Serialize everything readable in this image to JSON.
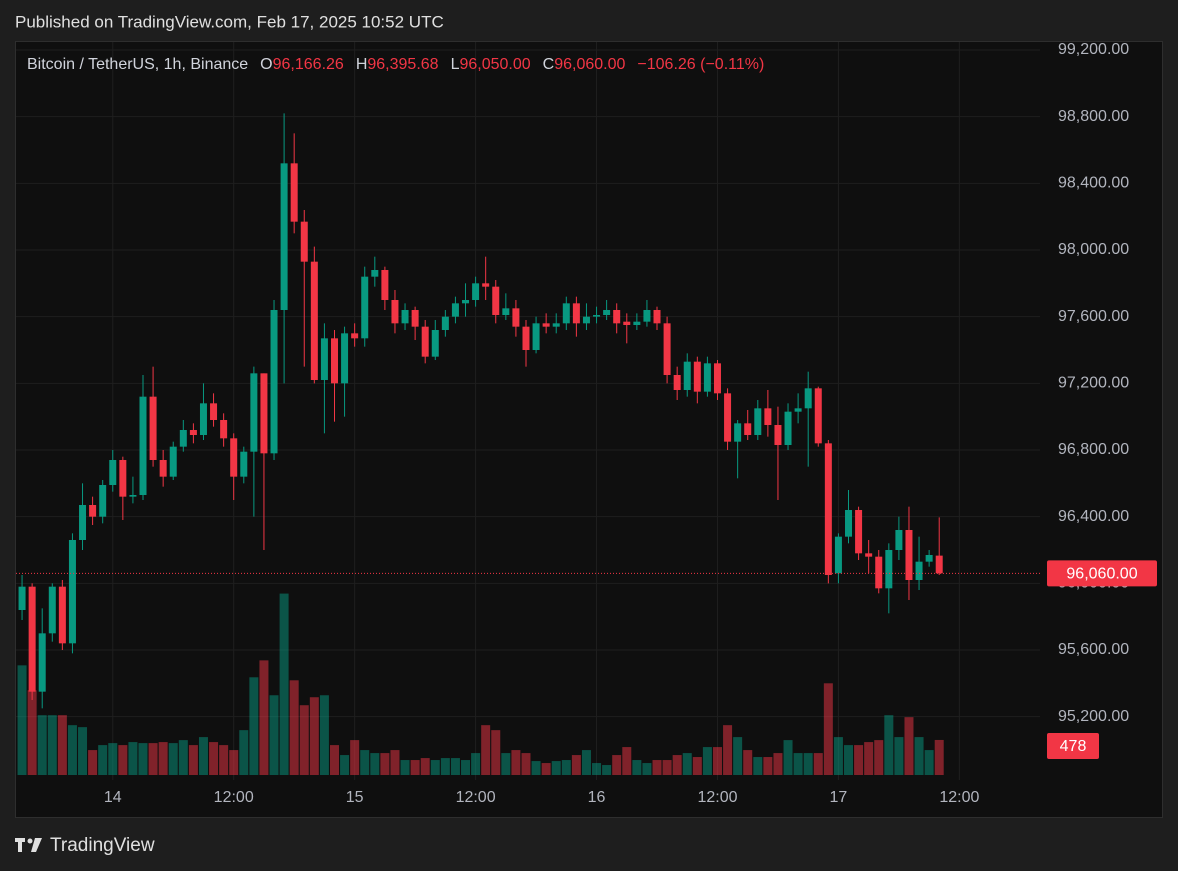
{
  "banner": "Published on TradingView.com, Feb 17, 2025 10:52 UTC",
  "footer": "TradingView",
  "chart_data": {
    "type": "candlestick",
    "symbol": "Bitcoin / TetherUS, 1h, Binance",
    "legend": [
      {
        "key": "O",
        "value": "96,166.26"
      },
      {
        "key": "H",
        "value": "96,395.68"
      },
      {
        "key": "L",
        "value": "96,050.00"
      },
      {
        "key": "C",
        "value": "96,060.00"
      }
    ],
    "change": "−106.26 (−0.11%)",
    "x": [
      -9,
      -8,
      -7,
      -6,
      -5,
      -4,
      -3,
      -2,
      -1,
      0,
      1,
      2,
      3,
      4,
      5,
      6,
      7,
      8,
      9,
      10,
      11,
      12,
      13,
      14,
      15,
      16,
      17,
      18,
      19,
      20,
      21,
      22,
      23,
      24,
      25,
      26,
      27,
      28,
      29,
      30,
      31,
      32,
      33,
      34,
      35,
      36,
      37,
      38,
      39,
      40,
      41,
      42,
      43,
      44,
      45,
      46,
      47,
      48,
      49,
      50,
      51,
      52,
      53,
      54,
      55,
      56,
      57,
      58,
      59,
      60,
      61,
      62,
      63,
      64,
      65,
      66,
      67,
      68,
      69,
      70,
      71,
      72,
      73,
      74,
      75,
      76,
      77,
      78,
      79,
      80,
      81,
      82
    ],
    "open": [
      95840,
      95980,
      95350,
      95700,
      95980,
      95640,
      96260,
      96470,
      96400,
      96590,
      96740,
      96520,
      96530,
      97120,
      96740,
      96640,
      96820,
      96920,
      96890,
      97080,
      96980,
      96870,
      96640,
      96790,
      97260,
      96780,
      97640,
      98520,
      98170,
      97930,
      97220,
      97470,
      97200,
      97500,
      97470,
      97840,
      97880,
      97700,
      97560,
      97640,
      97540,
      97360,
      97520,
      97600,
      97680,
      97700,
      97800,
      97780,
      97610,
      97650,
      97540,
      97400,
      97560,
      97540,
      97560,
      97680,
      97560,
      97600,
      97610,
      97640,
      97570,
      97550,
      97570,
      97640,
      97560,
      97250,
      97160,
      97330,
      97150,
      97320,
      97140,
      96850,
      96960,
      96890,
      97050,
      96950,
      96830,
      97030,
      97050,
      97170,
      96840,
      96060,
      96280,
      96440,
      96180,
      96160,
      95970,
      96200,
      96320,
      96020,
      96130,
      96166.26
    ],
    "high": [
      96050,
      96000,
      95850,
      96000,
      96020,
      96300,
      96600,
      96520,
      96620,
      96800,
      96760,
      96640,
      97250,
      97300,
      96800,
      96850,
      96980,
      96960,
      97200,
      97140,
      97020,
      96900,
      96820,
      97300,
      97260,
      97700,
      98820,
      98700,
      98240,
      98020,
      97560,
      97520,
      97540,
      97560,
      97900,
      97960,
      97900,
      97760,
      97680,
      97660,
      97580,
      97580,
      97640,
      97720,
      97800,
      97840,
      97960,
      97820,
      97740,
      97700,
      97580,
      97600,
      97620,
      97620,
      97720,
      97720,
      97680,
      97660,
      97700,
      97680,
      97620,
      97620,
      97700,
      97660,
      97600,
      97300,
      97380,
      97360,
      97360,
      97340,
      97170,
      96980,
      97040,
      97100,
      97160,
      97060,
      97080,
      97140,
      97270,
      97180,
      96860,
      96300,
      96560,
      96460,
      96260,
      96200,
      96240,
      96400,
      96460,
      96280,
      96200,
      96395.68
    ],
    "low": [
      95780,
      95300,
      95250,
      95650,
      95600,
      95580,
      96200,
      96350,
      96360,
      96550,
      96380,
      96480,
      96500,
      96700,
      96580,
      96620,
      96790,
      96840,
      96860,
      96940,
      96820,
      96500,
      96600,
      96400,
      96200,
      96740,
      97200,
      98100,
      97300,
      97200,
      96900,
      96970,
      97000,
      97420,
      97420,
      97780,
      97640,
      97500,
      97520,
      97460,
      97320,
      97340,
      97480,
      97560,
      97600,
      97660,
      97700,
      97560,
      97580,
      97480,
      97300,
      97380,
      97500,
      97500,
      97520,
      97480,
      97520,
      97560,
      97580,
      97500,
      97440,
      97520,
      97540,
      97520,
      97200,
      97100,
      97120,
      97080,
      97120,
      97100,
      96800,
      96630,
      96860,
      96860,
      96880,
      96500,
      96800,
      96960,
      96700,
      96820,
      96000,
      96000,
      96240,
      96140,
      96060,
      95940,
      95820,
      96140,
      95900,
      95960,
      96100,
      96050
    ],
    "close": [
      95980,
      95350,
      95700,
      95980,
      95640,
      96260,
      96470,
      96400,
      96590,
      96740,
      96520,
      96530,
      97120,
      96740,
      96640,
      96820,
      96920,
      96890,
      97080,
      96980,
      96870,
      96640,
      96790,
      97260,
      96780,
      97640,
      98520,
      98170,
      97930,
      97220,
      97470,
      97200,
      97500,
      97470,
      97840,
      97880,
      97700,
      97560,
      97640,
      97540,
      97360,
      97520,
      97600,
      97680,
      97700,
      97800,
      97780,
      97610,
      97650,
      97540,
      97400,
      97560,
      97540,
      97560,
      97680,
      97560,
      97600,
      97610,
      97640,
      97560,
      97550,
      97570,
      97640,
      97560,
      97250,
      97160,
      97330,
      97150,
      97320,
      97140,
      96850,
      96960,
      96890,
      97050,
      96950,
      96830,
      97030,
      97050,
      97170,
      96840,
      96050,
      96280,
      96440,
      96180,
      96160,
      95970,
      96200,
      96320,
      96020,
      96130,
      96170,
      96060
    ],
    "volume": [
      1496,
      1156,
      816,
      816,
      816,
      680,
      653,
      340,
      408,
      435,
      408,
      449,
      435,
      435,
      449,
      435,
      476,
      408,
      517,
      449,
      408,
      340,
      612,
      1333,
      1564,
      1088,
      2475,
      1292,
      952,
      1061,
      1088,
      408,
      272,
      476,
      340,
      299,
      299,
      340,
      204,
      204,
      231,
      204,
      231,
      231,
      204,
      299,
      680,
      612,
      299,
      340,
      299,
      190,
      163,
      190,
      204,
      272,
      340,
      163,
      136,
      272,
      381,
      204,
      163,
      204,
      204,
      272,
      299,
      245,
      381,
      381,
      680,
      517,
      340,
      245,
      245,
      299,
      476,
      299,
      299,
      299,
      1251,
      517,
      408,
      408,
      449,
      476,
      816,
      517,
      789,
      517,
      340,
      478
    ],
    "up_color": "#089981",
    "down_color": "#f23645",
    "xlim": [
      -9.7,
      92
    ],
    "xticks": [
      {
        "value": 0,
        "label": "14"
      },
      {
        "value": 12,
        "label": "12:00"
      },
      {
        "value": 24,
        "label": "15"
      },
      {
        "value": 36,
        "label": "12:00"
      },
      {
        "value": 48,
        "label": "16"
      },
      {
        "value": 60,
        "label": "12:00"
      },
      {
        "value": 72,
        "label": "17"
      },
      {
        "value": 84,
        "label": "12:00"
      }
    ],
    "ylim": [
      94820,
      99248
    ],
    "yticks": [
      {
        "value": 99200,
        "label": "99,200.00"
      },
      {
        "value": 98800,
        "label": "98,800.00"
      },
      {
        "value": 98400,
        "label": "98,400.00"
      },
      {
        "value": 98000,
        "label": "98,000.00"
      },
      {
        "value": 97600,
        "label": "97,600.00"
      },
      {
        "value": 97200,
        "label": "97,200.00"
      },
      {
        "value": 96800,
        "label": "96,800.00"
      },
      {
        "value": 96400,
        "label": "96,400.00"
      },
      {
        "value": 96000,
        "label": "96,000.00"
      },
      {
        "value": 95600,
        "label": "95,600.00"
      },
      {
        "value": 95200,
        "label": "95,200.00"
      }
    ],
    "y2lim": [
      0,
      10000
    ],
    "last_price": {
      "value": 96060,
      "label": "96,060.00"
    },
    "grid": true
  }
}
